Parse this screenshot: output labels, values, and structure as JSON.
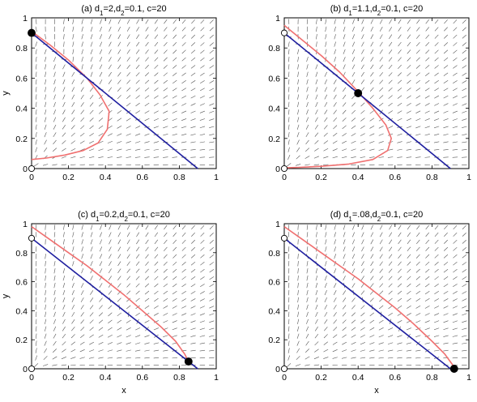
{
  "chart_data": [
    {
      "type": "line",
      "title": [
        "(a) d",
        "1",
        "=2,d",
        "2",
        "=0.1, c=20"
      ],
      "xlabel": "",
      "ylabel": "y",
      "xlim": [
        0,
        1
      ],
      "ylim": [
        0,
        1
      ],
      "xticks": [
        "0",
        "0.2",
        "0.4",
        "0.6",
        "0.8",
        "1"
      ],
      "yticks": [
        "0",
        "0.2",
        "0.4",
        "0.6",
        "0.8",
        "1"
      ],
      "series": [
        {
          "color": "#f07070",
          "x": [
            0.0,
            0.1,
            0.2,
            0.3,
            0.37,
            0.42,
            0.41,
            0.36,
            0.28,
            0.18,
            0.08,
            0.0
          ],
          "y": [
            0.91,
            0.82,
            0.72,
            0.6,
            0.49,
            0.38,
            0.26,
            0.17,
            0.12,
            0.09,
            0.07,
            0.06
          ]
        },
        {
          "color": "#1f1fa0",
          "x": [
            0.0,
            0.9
          ],
          "y": [
            0.9,
            0.0
          ]
        }
      ],
      "points": [
        {
          "x": 0.0,
          "y": 0.9,
          "filled": true
        },
        {
          "x": 0.0,
          "y": 0.0,
          "filled": false
        }
      ]
    },
    {
      "type": "line",
      "title": [
        "(b) d",
        "1",
        "=1.1,d",
        "2",
        "=0.1, c=20"
      ],
      "xlabel": "",
      "ylabel": "",
      "xlim": [
        0,
        1
      ],
      "ylim": [
        0,
        1
      ],
      "xticks": [
        "0",
        "0.2",
        "0.4",
        "0.6",
        "0.8",
        "1"
      ],
      "yticks": [
        "0",
        "0.2",
        "0.4",
        "0.6",
        "0.8",
        "1"
      ],
      "series": [
        {
          "color": "#f07070",
          "x": [
            0.0,
            0.1,
            0.2,
            0.3,
            0.4,
            0.48,
            0.55,
            0.58,
            0.56,
            0.48,
            0.35,
            0.2,
            0.08,
            0.0
          ],
          "y": [
            0.95,
            0.85,
            0.75,
            0.64,
            0.51,
            0.4,
            0.29,
            0.2,
            0.12,
            0.06,
            0.03,
            0.015,
            0.008,
            0.005
          ]
        },
        {
          "color": "#1f1fa0",
          "x": [
            0.0,
            0.9
          ],
          "y": [
            0.9,
            0.0
          ]
        }
      ],
      "points": [
        {
          "x": 0.4,
          "y": 0.5,
          "filled": true
        },
        {
          "x": 0.0,
          "y": 0.9,
          "filled": false
        },
        {
          "x": 0.0,
          "y": 0.0,
          "filled": false
        }
      ]
    },
    {
      "type": "line",
      "title": [
        "(c) d",
        "1",
        "=0.2,d",
        "2",
        "=0.1, c=20"
      ],
      "xlabel": "",
      "ylabel": "y",
      "xlim": [
        0,
        1
      ],
      "ylim": [
        0,
        1
      ],
      "xticks": [
        "0",
        "0.2",
        "0.4",
        "0.6",
        "0.8",
        "1"
      ],
      "yticks": [
        "0",
        "0.2",
        "0.4",
        "0.6",
        "0.8",
        "1"
      ],
      "series": [
        {
          "color": "#f07070",
          "x": [
            0.0,
            0.1,
            0.2,
            0.3,
            0.4,
            0.5,
            0.6,
            0.7,
            0.78,
            0.83,
            0.85
          ],
          "y": [
            0.98,
            0.89,
            0.8,
            0.71,
            0.61,
            0.51,
            0.4,
            0.29,
            0.19,
            0.1,
            0.05
          ]
        },
        {
          "color": "#1f1fa0",
          "x": [
            0.0,
            0.9
          ],
          "y": [
            0.9,
            0.0
          ]
        }
      ],
      "points": [
        {
          "x": 0.85,
          "y": 0.05,
          "filled": true
        },
        {
          "x": 0.0,
          "y": 0.9,
          "filled": false
        },
        {
          "x": 0.0,
          "y": 0.0,
          "filled": false
        }
      ]
    },
    {
      "type": "line",
      "title": [
        "(d) d",
        "1",
        "=.08,d",
        "2",
        "=0.1, c=20"
      ],
      "xlabel": "x",
      "ylabel": "",
      "xlim": [
        0,
        1
      ],
      "ylim": [
        0,
        1
      ],
      "xticks": [
        "0",
        "0.2",
        "0.4",
        "0.6",
        "0.8",
        "1"
      ],
      "yticks": [
        "0",
        "0.2",
        "0.4",
        "0.6",
        "0.8",
        "1"
      ],
      "series": [
        {
          "color": "#f07070",
          "x": [
            0.0,
            0.1,
            0.2,
            0.3,
            0.4,
            0.5,
            0.6,
            0.7,
            0.8,
            0.87,
            0.91,
            0.92
          ],
          "y": [
            0.98,
            0.89,
            0.8,
            0.71,
            0.62,
            0.52,
            0.42,
            0.31,
            0.19,
            0.1,
            0.03,
            0.0
          ]
        },
        {
          "color": "#1f1fa0",
          "x": [
            0.0,
            0.9
          ],
          "y": [
            0.9,
            0.0
          ]
        }
      ],
      "points": [
        {
          "x": 0.92,
          "y": 0.0,
          "filled": true
        },
        {
          "x": 0.0,
          "y": 0.9,
          "filled": false
        },
        {
          "x": 0.0,
          "y": 0.0,
          "filled": false
        }
      ]
    }
  ],
  "field": {
    "xs": 20,
    "ys": 20,
    "color": "#555555"
  },
  "colors": {
    "axis": "#000000",
    "point_fill": "#000000",
    "point_open": "#ffffff"
  }
}
